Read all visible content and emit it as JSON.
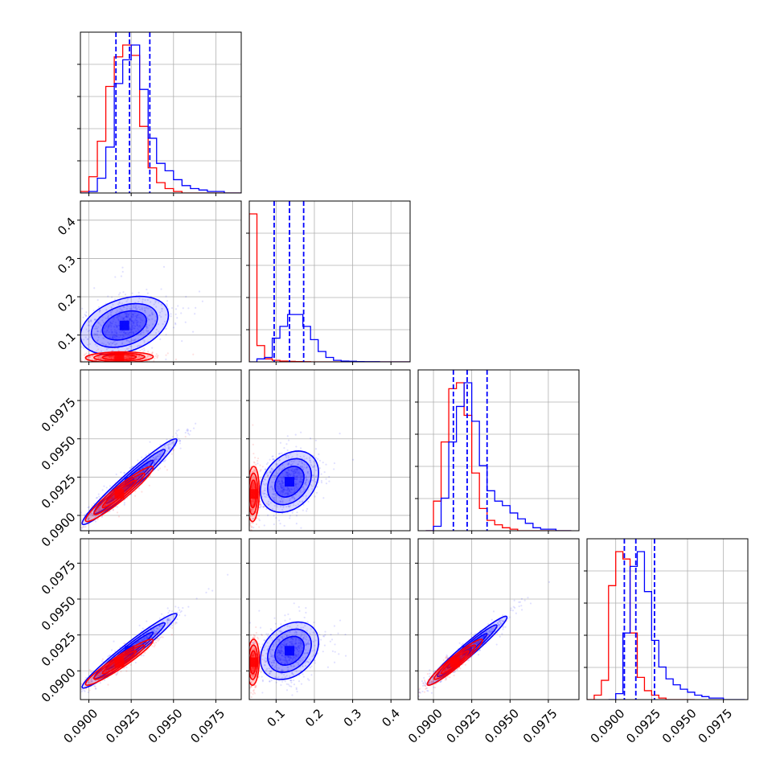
{
  "chart_data": {
    "type": "corner",
    "colors": {
      "blue": "#0000ff",
      "red": "#ff0000"
    },
    "grid": true,
    "legend": "none",
    "params": [
      {
        "range": [
          0.0895,
          0.099
        ],
        "ticks": [
          0.09,
          0.0925,
          0.095,
          0.0975
        ],
        "tick_labels": [
          "0.0900",
          "0.0925",
          "0.0950",
          "0.0975"
        ]
      },
      {
        "range": [
          0.03,
          0.45
        ],
        "ticks": [
          0.1,
          0.2,
          0.3,
          0.4
        ],
        "tick_labels": [
          "0.1",
          "0.2",
          "0.3",
          "0.4"
        ]
      },
      {
        "range": [
          0.089,
          0.0995
        ],
        "ticks": [
          0.09,
          0.0925,
          0.095,
          0.0975
        ],
        "tick_labels": [
          "0.0900",
          "0.0925",
          "0.0950",
          "0.0975"
        ]
      },
      {
        "range": [
          0.088,
          0.0992
        ],
        "ticks": [
          0.09,
          0.0925,
          0.095,
          0.0975
        ],
        "tick_labels": [
          "0.0900",
          "0.0925",
          "0.0950",
          "0.0975"
        ]
      }
    ],
    "diagonals": [
      {
        "quantiles": [
          0.0916,
          0.0924,
          0.0936
        ],
        "blue_hist": {
          "x": [
            0.0895,
            0.09,
            0.0905,
            0.091,
            0.0915,
            0.092,
            0.0925,
            0.093,
            0.0935,
            0.094,
            0.0945,
            0.095,
            0.0955,
            0.096,
            0.0965,
            0.097,
            0.0975,
            0.098,
            0.0985
          ],
          "values": [
            0,
            1,
            10,
            31,
            74,
            90,
            100,
            70,
            37,
            20,
            15,
            9,
            5,
            3,
            2,
            1,
            1,
            0,
            0
          ]
        },
        "red_hist": {
          "x": [
            0.0895,
            0.09,
            0.0905,
            0.091,
            0.0915,
            0.092,
            0.0925,
            0.093,
            0.0935,
            0.094,
            0.0945,
            0.095,
            0.0955,
            0.096,
            0.0965,
            0.097,
            0.0975,
            0.098,
            0.0985
          ],
          "values": [
            1,
            11,
            35,
            72,
            92,
            100,
            93,
            45,
            17,
            7,
            3,
            1,
            0,
            0,
            0,
            0,
            0,
            0,
            0
          ]
        }
      },
      {
        "quantiles": [
          0.095,
          0.135,
          0.172
        ],
        "blue_hist": {
          "x": [
            0.03,
            0.05,
            0.07,
            0.09,
            0.11,
            0.13,
            0.15,
            0.17,
            0.19,
            0.21,
            0.23,
            0.25,
            0.27,
            0.29,
            0.31,
            0.33,
            0.35,
            0.37,
            0.39,
            0.41,
            0.43
          ],
          "values": [
            0,
            2,
            3,
            16,
            24,
            32,
            32,
            24,
            15,
            7,
            3,
            1,
            0.5,
            0.4,
            0.2,
            0.1,
            0.1,
            0,
            0,
            0,
            0
          ]
        },
        "red_hist": {
          "x": [
            0.03,
            0.05,
            0.07,
            0.09,
            0.11,
            0.13,
            0.15,
            0.17,
            0.19,
            0.21,
            0.23,
            0.25,
            0.27,
            0.29,
            0.31,
            0.33,
            0.35,
            0.37,
            0.39,
            0.41,
            0.43
          ],
          "values": [
            100,
            11,
            2,
            1,
            0.5,
            0.3,
            0.2,
            0.1,
            0,
            0,
            0,
            0,
            0,
            0,
            0,
            0,
            0,
            0,
            0,
            0,
            0
          ]
        }
      },
      {
        "quantiles": [
          0.0913,
          0.0922,
          0.0935
        ],
        "blue_hist": {
          "x": [
            0.0895,
            0.09,
            0.0905,
            0.091,
            0.0915,
            0.092,
            0.0925,
            0.093,
            0.0935,
            0.094,
            0.0945,
            0.095,
            0.0955,
            0.096,
            0.0965,
            0.097,
            0.0975,
            0.098,
            0.0985
          ],
          "values": [
            0,
            3,
            22,
            60,
            84,
            100,
            74,
            44,
            27,
            20,
            17,
            12,
            8,
            5,
            2,
            1,
            1,
            0,
            0
          ]
        },
        "red_hist": {
          "x": [
            0.0895,
            0.09,
            0.0905,
            0.091,
            0.0915,
            0.092,
            0.0925,
            0.093,
            0.0935,
            0.094,
            0.0945,
            0.095,
            0.0955,
            0.096,
            0.0965,
            0.097,
            0.0975,
            0.098,
            0.0985
          ],
          "values": [
            0,
            20,
            60,
            96,
            100,
            78,
            39,
            15,
            7,
            4,
            2,
            1,
            0,
            0,
            0,
            0,
            0,
            0,
            0
          ]
        }
      },
      {
        "quantiles": [
          0.0906,
          0.0914,
          0.0927
        ],
        "blue_hist": {
          "x": [
            0.0895,
            0.09,
            0.0905,
            0.091,
            0.0915,
            0.092,
            0.0925,
            0.093,
            0.0935,
            0.094,
            0.0945,
            0.095,
            0.0955,
            0.096,
            0.0965,
            0.097,
            0.0975,
            0.098,
            0.0985
          ],
          "values": [
            0,
            4,
            45,
            90,
            100,
            73,
            40,
            22,
            14,
            10,
            7,
            5,
            3,
            2,
            1,
            1,
            0,
            0,
            0
          ]
        },
        "red_hist": {
          "x": [
            0.088,
            0.0885,
            0.089,
            0.0895,
            0.09,
            0.0905,
            0.091,
            0.0915,
            0.092,
            0.0925,
            0.093,
            0.0935,
            0.094,
            0.0945,
            0.095
          ],
          "values": [
            0,
            3,
            13,
            77,
            100,
            95,
            45,
            15,
            6,
            3,
            1,
            0,
            0,
            0,
            0
          ]
        }
      }
    ],
    "pairs": [
      {
        "row": 1,
        "col": 0,
        "blue": {
          "center": [
            0.0921,
            0.125
          ],
          "spread": [
            0.0013,
            0.038
          ],
          "corr": 0.35
        },
        "red": {
          "center": [
            0.0918,
            0.042
          ],
          "spread": [
            0.001,
            0.007
          ],
          "corr": 0.1
        }
      },
      {
        "row": 2,
        "col": 0,
        "blue": {
          "center": [
            0.0924,
            0.0922
          ],
          "spread": [
            0.0014,
            0.0014
          ],
          "corr": 0.97
        },
        "red": {
          "center": [
            0.0918,
            0.0914
          ],
          "spread": [
            0.001,
            0.0009
          ],
          "corr": 0.95
        }
      },
      {
        "row": 2,
        "col": 1,
        "blue": {
          "center": [
            0.135,
            0.0922
          ],
          "spread": [
            0.038,
            0.001
          ],
          "corr": 0.3
        },
        "red": {
          "center": [
            0.04,
            0.0914
          ],
          "spread": [
            0.008,
            0.0009
          ],
          "corr": 0.1
        }
      },
      {
        "row": 3,
        "col": 0,
        "blue": {
          "center": [
            0.0924,
            0.0914
          ],
          "spread": [
            0.0014,
            0.0013
          ],
          "corr": 0.97
        },
        "red": {
          "center": [
            0.0918,
            0.0906
          ],
          "spread": [
            0.001,
            0.0008
          ],
          "corr": 0.95
        }
      },
      {
        "row": 3,
        "col": 1,
        "blue": {
          "center": [
            0.135,
            0.0914
          ],
          "spread": [
            0.038,
            0.001
          ],
          "corr": 0.3
        },
        "red": {
          "center": [
            0.04,
            0.0906
          ],
          "spread": [
            0.008,
            0.0008
          ],
          "corr": 0.1
        }
      },
      {
        "row": 3,
        "col": 2,
        "blue": {
          "center": [
            0.0922,
            0.0914
          ],
          "spread": [
            0.0013,
            0.0012
          ],
          "corr": 0.97
        },
        "red": {
          "center": [
            0.0914,
            0.0906
          ],
          "spread": [
            0.0009,
            0.0008
          ],
          "corr": 0.95
        }
      }
    ]
  }
}
